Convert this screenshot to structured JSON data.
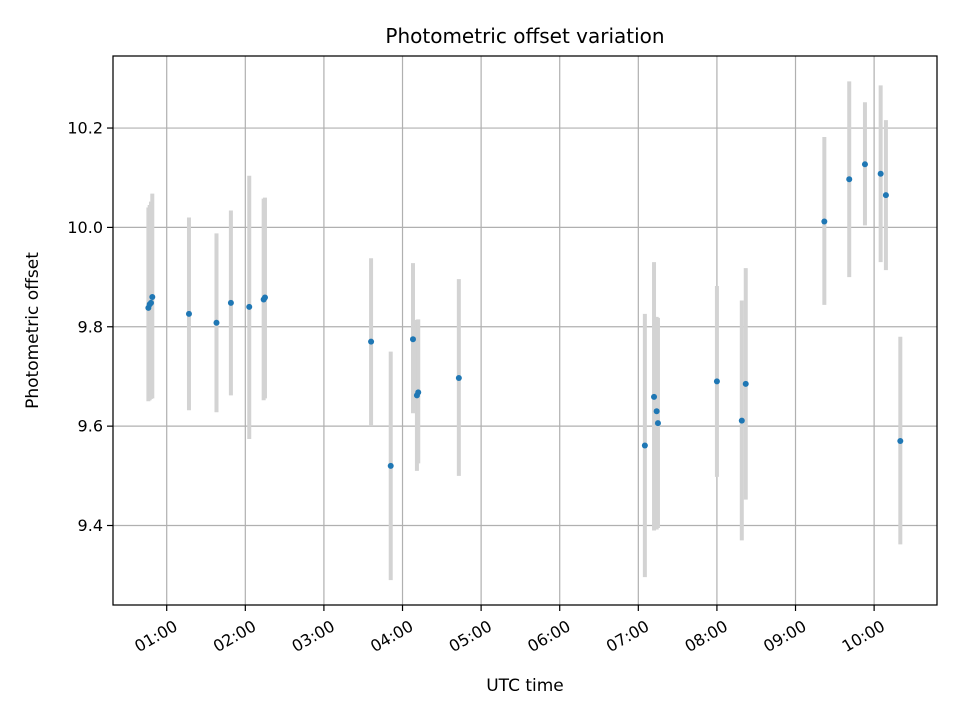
{
  "chart_data": {
    "type": "scatter",
    "title": "Photometric offset variation",
    "xlabel": "UTC time",
    "ylabel": "Photometric offset",
    "x_unit": "UTC time (HH:MM)",
    "xlim": [
      "00:19",
      "10:48"
    ],
    "ylim": [
      9.24,
      10.345
    ],
    "x_ticks": [
      "01:00",
      "02:00",
      "03:00",
      "04:00",
      "05:00",
      "06:00",
      "07:00",
      "08:00",
      "09:00",
      "10:00"
    ],
    "y_ticks": [
      9.4,
      9.6,
      9.8,
      10.0,
      10.2
    ],
    "y_tick_labels": [
      "9.4",
      "9.6",
      "9.8",
      "10.0",
      "10.2"
    ],
    "grid": true,
    "point_color": "#1f77b4",
    "errorbar_color": "#d3d3d3",
    "points": [
      {
        "x": "00:46",
        "y": 9.838,
        "err_lo": 9.65,
        "err_hi": 10.04
      },
      {
        "x": "00:47",
        "y": 9.845,
        "err_lo": 9.652,
        "err_hi": 10.045
      },
      {
        "x": "00:48",
        "y": 9.848,
        "err_lo": 9.655,
        "err_hi": 10.052
      },
      {
        "x": "00:49",
        "y": 9.86,
        "err_lo": 9.656,
        "err_hi": 10.068
      },
      {
        "x": "01:17",
        "y": 9.826,
        "err_lo": 9.632,
        "err_hi": 10.02
      },
      {
        "x": "01:38",
        "y": 9.808,
        "err_lo": 9.628,
        "err_hi": 9.988
      },
      {
        "x": "01:49",
        "y": 9.848,
        "err_lo": 9.662,
        "err_hi": 10.034
      },
      {
        "x": "02:03",
        "y": 9.84,
        "err_lo": 9.574,
        "err_hi": 10.104
      },
      {
        "x": "02:14",
        "y": 9.855,
        "err_lo": 9.652,
        "err_hi": 10.058
      },
      {
        "x": "02:15",
        "y": 9.859,
        "err_lo": 9.656,
        "err_hi": 10.06
      },
      {
        "x": "03:36",
        "y": 9.77,
        "err_lo": 9.6,
        "err_hi": 9.938
      },
      {
        "x": "03:51",
        "y": 9.52,
        "err_lo": 9.29,
        "err_hi": 9.75
      },
      {
        "x": "04:08",
        "y": 9.775,
        "err_lo": 9.626,
        "err_hi": 9.928
      },
      {
        "x": "04:11",
        "y": 9.662,
        "err_lo": 9.51,
        "err_hi": 9.814
      },
      {
        "x": "04:12",
        "y": 9.668,
        "err_lo": 9.525,
        "err_hi": 9.815
      },
      {
        "x": "04:43",
        "y": 9.697,
        "err_lo": 9.5,
        "err_hi": 9.896
      },
      {
        "x": "07:05",
        "y": 9.561,
        "err_lo": 9.296,
        "err_hi": 9.826
      },
      {
        "x": "07:12",
        "y": 9.659,
        "err_lo": 9.39,
        "err_hi": 9.93
      },
      {
        "x": "07:14",
        "y": 9.63,
        "err_lo": 9.392,
        "err_hi": 9.82
      },
      {
        "x": "07:15",
        "y": 9.606,
        "err_lo": 9.395,
        "err_hi": 9.818
      },
      {
        "x": "08:00",
        "y": 9.69,
        "err_lo": 9.498,
        "err_hi": 9.882
      },
      {
        "x": "08:19",
        "y": 9.611,
        "err_lo": 9.37,
        "err_hi": 9.853
      },
      {
        "x": "08:22",
        "y": 9.685,
        "err_lo": 9.452,
        "err_hi": 9.918
      },
      {
        "x": "09:22",
        "y": 10.012,
        "err_lo": 9.844,
        "err_hi": 10.182
      },
      {
        "x": "09:41",
        "y": 10.097,
        "err_lo": 9.9,
        "err_hi": 10.294
      },
      {
        "x": "09:53",
        "y": 10.127,
        "err_lo": 10.004,
        "err_hi": 10.252
      },
      {
        "x": "10:05",
        "y": 10.108,
        "err_lo": 9.93,
        "err_hi": 10.286
      },
      {
        "x": "10:09",
        "y": 10.065,
        "err_lo": 9.914,
        "err_hi": 10.216
      },
      {
        "x": "10:20",
        "y": 9.57,
        "err_lo": 9.362,
        "err_hi": 9.78
      }
    ]
  }
}
